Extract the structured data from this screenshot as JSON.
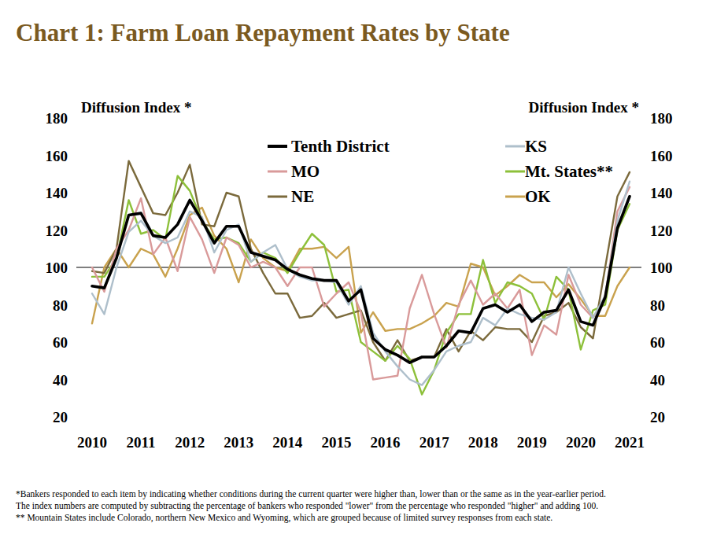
{
  "chart_data": {
    "type": "line",
    "title": "Chart 1: Farm Loan Repayment Rates by State",
    "y_label": "Diffusion Index *",
    "y2_label": "Diffusion Index *",
    "notes": [
      "*Bankers responded to each item by indicating whether conditions during the current quarter were higher than, lower than or the same as in the year-earlier period.",
      "The index numbers are computed by subtracting the percentage of bankers who responded \"lower\" from the percentage who responded \"higher\" and adding 100.",
      "** Mountain States include Colorado, northern New Mexico and Wyoming, which are grouped because of limited survey responses from each state."
    ],
    "categories": [
      "2010",
      null,
      null,
      null,
      "2011",
      null,
      null,
      null,
      "2012",
      null,
      null,
      null,
      "2013",
      null,
      null,
      null,
      "2014",
      null,
      null,
      null,
      "2015",
      null,
      null,
      null,
      "2016",
      null,
      null,
      null,
      "2017",
      null,
      null,
      null,
      "2018",
      null,
      null,
      null,
      "2019",
      null,
      null,
      null,
      "2020",
      null,
      null,
      null,
      "2021"
    ],
    "series": [
      {
        "name": "Tenth District",
        "color": "#000000",
        "values": [
          90,
          89,
          105,
          128,
          129,
          117,
          116,
          123,
          136,
          125,
          113,
          122,
          122,
          108,
          106,
          104,
          99,
          96,
          94,
          93,
          93,
          82,
          88,
          62,
          56,
          53,
          49,
          52,
          52,
          58,
          66,
          65,
          78,
          80,
          76,
          80,
          71,
          76,
          77,
          88,
          71,
          69,
          84,
          121,
          138
        ]
      },
      {
        "name": "KS",
        "color": "#aebfcb",
        "values": [
          86,
          75,
          100,
          119,
          125,
          117,
          113,
          116,
          130,
          127,
          108,
          120,
          123,
          103,
          108,
          112,
          99,
          95,
          93,
          93,
          92,
          80,
          90,
          65,
          55,
          47,
          40,
          37,
          45,
          55,
          58,
          60,
          73,
          69,
          78,
          75,
          73,
          72,
          76,
          100,
          86,
          73,
          85,
          125,
          146
        ]
      },
      {
        "name": "MO",
        "color": "#d99a9a",
        "values": [
          100,
          87,
          110,
          120,
          137,
          107,
          116,
          98,
          127,
          115,
          97,
          116,
          112,
          100,
          103,
          100,
          90,
          100,
          100,
          79,
          86,
          92,
          76,
          40,
          41,
          42,
          78,
          96,
          75,
          57,
          80,
          93,
          80,
          86,
          78,
          88,
          53,
          69,
          64,
          96,
          80,
          73,
          84,
          130,
          143
        ]
      },
      {
        "name": "Mt. States**",
        "color": "#8dc03a",
        "values": [
          95,
          95,
          105,
          136,
          118,
          120,
          115,
          149,
          141,
          125,
          115,
          116,
          113,
          103,
          108,
          105,
          97,
          108,
          118,
          112,
          87,
          88,
          60,
          55,
          50,
          58,
          51,
          32,
          45,
          65,
          75,
          75,
          104,
          81,
          92,
          90,
          86,
          72,
          95,
          88,
          56,
          77,
          80,
          120,
          134
        ]
      },
      {
        "name": "NE",
        "color": "#7b6a3c",
        "values": [
          98,
          97,
          110,
          157,
          143,
          129,
          128,
          140,
          155,
          123,
          122,
          140,
          138,
          110,
          97,
          86,
          86,
          73,
          74,
          81,
          73,
          75,
          77,
          60,
          50,
          61,
          50,
          52,
          52,
          67,
          55,
          66,
          61,
          68,
          67,
          67,
          60,
          74,
          76,
          81,
          68,
          62,
          100,
          138,
          151
        ]
      },
      {
        "name": "OK",
        "color": "#c9a24e",
        "values": [
          70,
          100,
          110,
          100,
          110,
          107,
          95,
          110,
          128,
          132,
          117,
          110,
          92,
          115,
          105,
          100,
          98,
          110,
          110,
          111,
          105,
          111,
          65,
          76,
          66,
          67,
          67,
          70,
          74,
          81,
          79,
          102,
          100,
          85,
          90,
          96,
          92,
          92,
          84,
          91,
          83,
          74,
          74,
          90,
          100
        ]
      }
    ],
    "ylim": [
      20,
      180
    ],
    "yticks": [
      20,
      40,
      60,
      80,
      100,
      120,
      140,
      160,
      180
    ],
    "y2lim": [
      20,
      180
    ],
    "y2ticks": [
      20,
      40,
      60,
      80,
      100,
      120,
      140,
      160,
      180
    ],
    "reference_lines": [
      100
    ],
    "grid": false,
    "legend": "top"
  }
}
